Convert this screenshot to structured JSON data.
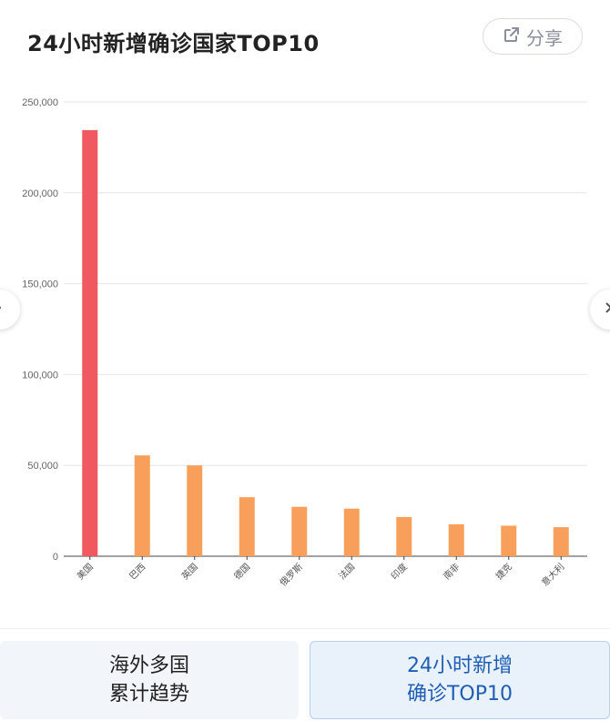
{
  "header": {
    "title": "24小时新增确诊国家TOP10",
    "share_label": "分享"
  },
  "tabs": [
    {
      "line1": "海外多国",
      "line2": "累计趋势"
    },
    {
      "line1": "24小时新增",
      "line2": "确诊TOP10"
    }
  ],
  "colors": {
    "top_bar": "#f0595f",
    "other_bars": "#f8a05b",
    "active_tab_text": "#1e5fb5"
  },
  "chart_data": {
    "type": "bar",
    "categories": [
      "美国",
      "巴西",
      "英国",
      "德国",
      "俄罗斯",
      "法国",
      "印度",
      "南非",
      "捷克",
      "意大利"
    ],
    "values": [
      234500,
      55500,
      50000,
      32500,
      27200,
      26200,
      21600,
      17600,
      16800,
      16000
    ],
    "yticks": [
      "0",
      "50,000",
      "100,000",
      "150,000",
      "200,000",
      "250,000"
    ],
    "ylim": [
      0,
      250000
    ],
    "grid": true,
    "title": "",
    "xlabel": "",
    "ylabel": ""
  }
}
